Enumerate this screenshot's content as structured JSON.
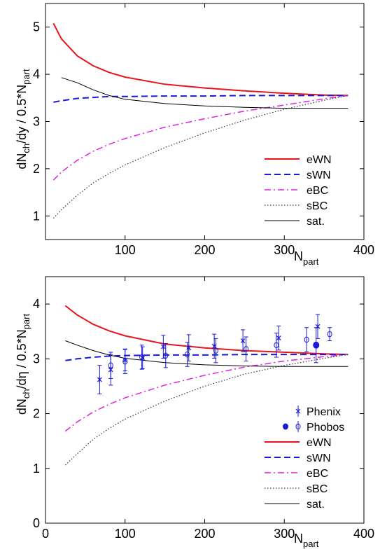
{
  "chart_data": [
    {
      "type": "line",
      "xlabel": "N",
      "xlabel_sub": "part",
      "ylabel_parts": [
        "dN",
        "ch",
        "/dy / 0.5*N",
        "part"
      ],
      "xlim": [
        0,
        400
      ],
      "ylim": [
        0.5,
        5.5
      ],
      "xticks": [
        100,
        200,
        300,
        400
      ],
      "yticks": [
        1,
        2,
        3,
        4,
        5
      ],
      "grid": false,
      "legend_position": "bottom-right",
      "series": [
        {
          "name": "eWN",
          "color": "#e8141c",
          "style": "solid",
          "width": 2,
          "x": [
            10,
            20,
            40,
            60,
            80,
            100,
            150,
            200,
            250,
            300,
            350,
            380
          ],
          "y": [
            5.08,
            4.75,
            4.39,
            4.18,
            4.04,
            3.94,
            3.79,
            3.71,
            3.65,
            3.6,
            3.56,
            3.55
          ]
        },
        {
          "name": "sWN",
          "color": "#1a1ad6",
          "style": "dashed",
          "width": 2,
          "x": [
            10,
            20,
            40,
            60,
            80,
            100,
            150,
            200,
            250,
            300,
            350,
            380
          ],
          "y": [
            3.41,
            3.44,
            3.49,
            3.51,
            3.53,
            3.53,
            3.54,
            3.54,
            3.55,
            3.55,
            3.55,
            3.55
          ]
        },
        {
          "name": "eBC",
          "color": "#e020e0",
          "style": "dashdot",
          "width": 1.5,
          "x": [
            10,
            20,
            40,
            60,
            80,
            100,
            150,
            200,
            250,
            300,
            350,
            380
          ],
          "y": [
            1.76,
            1.93,
            2.18,
            2.37,
            2.52,
            2.64,
            2.88,
            3.06,
            3.22,
            3.35,
            3.48,
            3.55
          ]
        },
        {
          "name": "sBC",
          "color": "#333333",
          "style": "dotted",
          "width": 1.2,
          "x": [
            10,
            20,
            40,
            60,
            80,
            100,
            150,
            200,
            250,
            300,
            350,
            380
          ],
          "y": [
            0.95,
            1.13,
            1.44,
            1.7,
            1.9,
            2.08,
            2.45,
            2.76,
            3.03,
            3.26,
            3.45,
            3.55
          ]
        },
        {
          "name": "sat.",
          "color": "#000000",
          "style": "solid",
          "width": 1,
          "x": [
            20,
            40,
            60,
            80,
            100,
            150,
            200,
            250,
            300,
            350,
            380
          ],
          "y": [
            3.93,
            3.82,
            3.67,
            3.55,
            3.47,
            3.38,
            3.33,
            3.3,
            3.28,
            3.28,
            3.28
          ]
        }
      ]
    },
    {
      "type": "line",
      "xlabel": "N",
      "xlabel_sub": "part",
      "ylabel_parts": [
        "dN",
        "ch",
        "/dη / 0.5*N",
        "part"
      ],
      "xlim": [
        0,
        400
      ],
      "ylim": [
        0,
        4.5
      ],
      "xticks": [
        0,
        100,
        200,
        300,
        400
      ],
      "yticks": [
        0,
        1,
        2,
        3,
        4
      ],
      "grid": false,
      "legend_position": "bottom-right",
      "series": [
        {
          "name": "eWN",
          "color": "#e8141c",
          "style": "solid",
          "width": 2,
          "x": [
            25,
            40,
            60,
            80,
            100,
            150,
            200,
            250,
            300,
            350,
            380
          ],
          "y": [
            3.97,
            3.8,
            3.63,
            3.51,
            3.42,
            3.27,
            3.2,
            3.15,
            3.12,
            3.09,
            3.08
          ]
        },
        {
          "name": "sWN",
          "color": "#1a1ad6",
          "style": "dashed",
          "width": 2,
          "x": [
            25,
            40,
            60,
            80,
            100,
            150,
            200,
            250,
            300,
            350,
            380
          ],
          "y": [
            2.97,
            3.0,
            3.03,
            3.05,
            3.06,
            3.07,
            3.07,
            3.08,
            3.08,
            3.08,
            3.08
          ]
        },
        {
          "name": "eBC",
          "color": "#e020e0",
          "style": "dashdot",
          "width": 1.5,
          "x": [
            25,
            40,
            60,
            80,
            100,
            150,
            200,
            250,
            300,
            350,
            380
          ],
          "y": [
            1.68,
            1.85,
            2.03,
            2.17,
            2.29,
            2.52,
            2.7,
            2.85,
            2.96,
            3.04,
            3.08
          ]
        },
        {
          "name": "sBC",
          "color": "#333333",
          "style": "dotted",
          "width": 1.2,
          "x": [
            25,
            40,
            60,
            80,
            100,
            150,
            200,
            250,
            300,
            350,
            380
          ],
          "y": [
            1.06,
            1.27,
            1.53,
            1.73,
            1.9,
            2.23,
            2.5,
            2.72,
            2.88,
            3.01,
            3.08
          ]
        },
        {
          "name": "sat.",
          "color": "#000000",
          "style": "solid",
          "width": 1,
          "x": [
            25,
            40,
            60,
            80,
            100,
            150,
            200,
            250,
            300,
            350,
            380
          ],
          "y": [
            3.33,
            3.25,
            3.15,
            3.07,
            3.01,
            2.93,
            2.89,
            2.87,
            2.86,
            2.86,
            2.86
          ]
        }
      ],
      "points": [
        {
          "name": "Phenix",
          "marker": "star",
          "color": "#1a1ad6",
          "x": [
            68,
            82,
            100,
            122,
            148,
            180,
            212,
            248,
            293,
            342
          ],
          "y": [
            2.62,
            2.8,
            2.98,
            3.02,
            3.22,
            3.2,
            3.23,
            3.33,
            3.38,
            3.59
          ],
          "err": [
            0.26,
            0.28,
            0.2,
            0.2,
            0.21,
            0.24,
            0.22,
            0.2,
            0.22,
            0.22
          ]
        },
        {
          "name": "Phobos",
          "marker": "circle-open",
          "color": "#1a1ad6",
          "x": [
            82,
            100,
            121,
            151,
            178,
            214,
            252,
            290,
            328,
            357
          ],
          "y": [
            2.88,
            2.95,
            3.03,
            3.06,
            3.08,
            3.15,
            3.18,
            3.25,
            3.35,
            3.45
          ],
          "err": [
            0.24,
            0.22,
            0.22,
            0.22,
            0.22,
            0.22,
            0.22,
            0.22,
            0.22,
            0.12
          ]
        },
        {
          "name": "Phobos",
          "marker": "circle-filled",
          "color": "#1a1ad6",
          "x": [
            340
          ],
          "y": [
            3.25
          ],
          "err": [
            0.32
          ]
        }
      ]
    }
  ]
}
